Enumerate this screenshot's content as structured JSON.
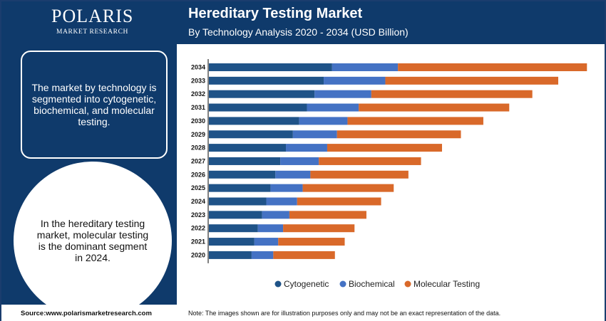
{
  "brand": {
    "name": "POLARIS",
    "tagline": "MARKET RESEARCH"
  },
  "header": {
    "title": "Hereditary Testing Market",
    "subtitle": "By Technology Analysis 2020 - 2034 (USD Billion)"
  },
  "left_panel": {
    "info_text": "The market by technology is segmented into cytogenetic, biochemical, and molecular testing.",
    "highlight_text": "In the hereditary testing market, molecular testing is the dominant segment in 2024."
  },
  "footer": {
    "source": "Source:www.polarismarketresearch.com",
    "note": "Note: The images shown are for illustration purposes only and may not be an exact representation of the data."
  },
  "colors": {
    "header_bg": "#0f3a6b",
    "cytogenetic": "#1f5388",
    "biochemical": "#4472c4",
    "molecular": "#d9692a"
  },
  "chart_data": {
    "type": "bar",
    "orientation": "horizontal",
    "stacked": true,
    "title": "Hereditary Testing Market",
    "subtitle": "By Technology Analysis 2020 - 2034 (USD Billion)",
    "xlabel": "",
    "ylabel": "",
    "categories": [
      "2034",
      "2033",
      "2032",
      "2031",
      "2030",
      "2029",
      "2028",
      "2027",
      "2026",
      "2025",
      "2024",
      "2023",
      "2022",
      "2021",
      "2020"
    ],
    "series": [
      {
        "name": "Cytogenetic",
        "color": "#1f5388",
        "values": [
          17.6,
          16.4,
          15.1,
          14.0,
          12.9,
          12.0,
          11.0,
          10.2,
          9.5,
          8.8,
          8.2,
          7.6,
          7.0,
          6.5,
          6.1
        ]
      },
      {
        "name": "Biochemical",
        "color": "#4472c4",
        "values": [
          9.4,
          8.8,
          8.1,
          7.4,
          6.9,
          6.3,
          5.9,
          5.5,
          5.0,
          4.6,
          4.4,
          3.9,
          3.6,
          3.4,
          3.1
        ]
      },
      {
        "name": "Molecular Testing",
        "color": "#d9692a",
        "values": [
          27.0,
          24.7,
          23.0,
          21.5,
          19.4,
          17.7,
          16.4,
          14.6,
          14.0,
          13.0,
          12.0,
          11.0,
          10.2,
          9.5,
          8.8
        ]
      }
    ],
    "legend_position": "bottom-center",
    "grid": false
  }
}
